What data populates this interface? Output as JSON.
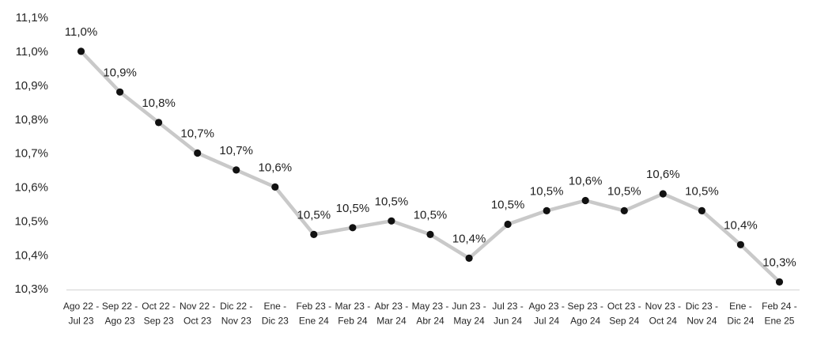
{
  "chart_data": {
    "type": "line",
    "title": "",
    "xlabel": "",
    "ylabel": "",
    "legend": "none",
    "grid": false,
    "decimal_separator": ",",
    "ylim": [
      10.3,
      11.1
    ],
    "y_ticks": [
      "11,1%",
      "11,0%",
      "10,9%",
      "10,8%",
      "10,7%",
      "10,6%",
      "10,5%",
      "10,4%",
      "10,3%"
    ],
    "categories": [
      {
        "top": "Ago 22 -",
        "bottom": "Jul 23"
      },
      {
        "top": "Sep 22 -",
        "bottom": "Ago 23"
      },
      {
        "top": "Oct 22 -",
        "bottom": "Sep 23"
      },
      {
        "top": "Nov 22 -",
        "bottom": "Oct 23"
      },
      {
        "top": "Dic 22 -",
        "bottom": "Nov 23"
      },
      {
        "top": "Ene -",
        "bottom": "Dic 23"
      },
      {
        "top": "Feb 23 -",
        "bottom": "Ene 24"
      },
      {
        "top": "Mar 23 -",
        "bottom": "Feb 24"
      },
      {
        "top": "Abr 23 -",
        "bottom": "Mar 24"
      },
      {
        "top": "May 23 -",
        "bottom": "Abr 24"
      },
      {
        "top": "Jun 23 -",
        "bottom": "May 24"
      },
      {
        "top": "Jul 23 -",
        "bottom": "Jun 24"
      },
      {
        "top": "Ago 23 -",
        "bottom": "Jul 24"
      },
      {
        "top": "Sep 23 -",
        "bottom": "Ago 24"
      },
      {
        "top": "Oct 23 -",
        "bottom": "Sep 24"
      },
      {
        "top": "Nov 23 -",
        "bottom": "Oct 24"
      },
      {
        "top": "Dic 23 -",
        "bottom": "Nov 24"
      },
      {
        "top": "Ene -",
        "bottom": "Dic 24"
      },
      {
        "top": "Feb 24 -",
        "bottom": "Ene 25"
      }
    ],
    "values": [
      11.0,
      10.88,
      10.79,
      10.7,
      10.65,
      10.6,
      10.46,
      10.48,
      10.5,
      10.46,
      10.39,
      10.49,
      10.53,
      10.56,
      10.53,
      10.58,
      10.53,
      10.43,
      10.32
    ],
    "data_labels": [
      "11,0%",
      "10,9%",
      "10,8%",
      "10,7%",
      "10,7%",
      "10,6%",
      "10,5%",
      "10,5%",
      "10,5%",
      "10,5%",
      "10,4%",
      "10,5%",
      "10,5%",
      "10,6%",
      "10,5%",
      "10,6%",
      "10,5%",
      "10,4%",
      "10,3%"
    ],
    "colors": {
      "line": "#c9c9c9",
      "marker": "#111111",
      "data_label_text": "#1f1f1f",
      "axis_text": "#262626",
      "axis_line": "#d9d9d9",
      "background": "#ffffff"
    }
  }
}
